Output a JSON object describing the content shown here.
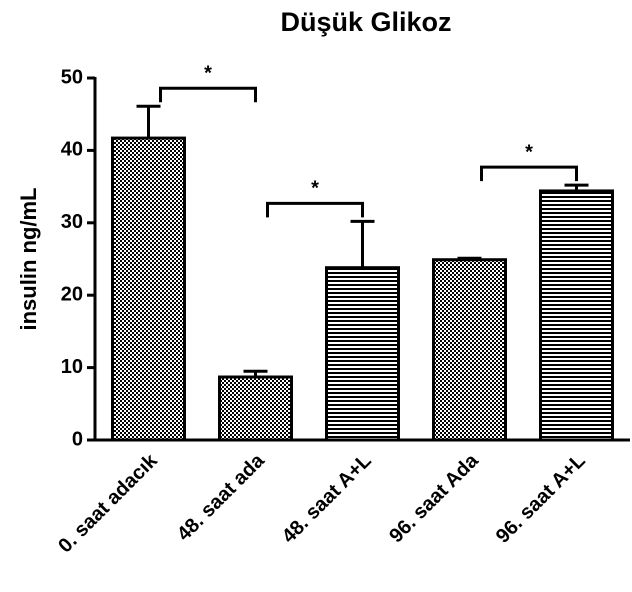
{
  "chart_data": {
    "type": "bar",
    "title": "Düşük Glikoz",
    "y_label": "insulin ng/mL",
    "categories": [
      "0. saat adacık",
      "48. saat ada",
      "48. saat A+L",
      "96. saat Ada",
      "96. saat A+L"
    ],
    "values": [
      41.7,
      8.7,
      23.8,
      24.9,
      34.4
    ],
    "errors": [
      4.4,
      0.8,
      6.4,
      0.2,
      0.8
    ],
    "patterns": [
      "checker",
      "checker",
      "stripes",
      "checker",
      "stripes"
    ],
    "color": "#000000",
    "ylim": [
      0,
      50
    ],
    "yticks": [
      0,
      10,
      20,
      30,
      40,
      50
    ],
    "brackets": [
      {
        "label": "*",
        "categories": [
          0,
          1
        ]
      },
      {
        "label": "*",
        "categories": [
          1,
          2
        ]
      },
      {
        "label": "*",
        "categories": [
          3,
          4
        ]
      }
    ]
  }
}
